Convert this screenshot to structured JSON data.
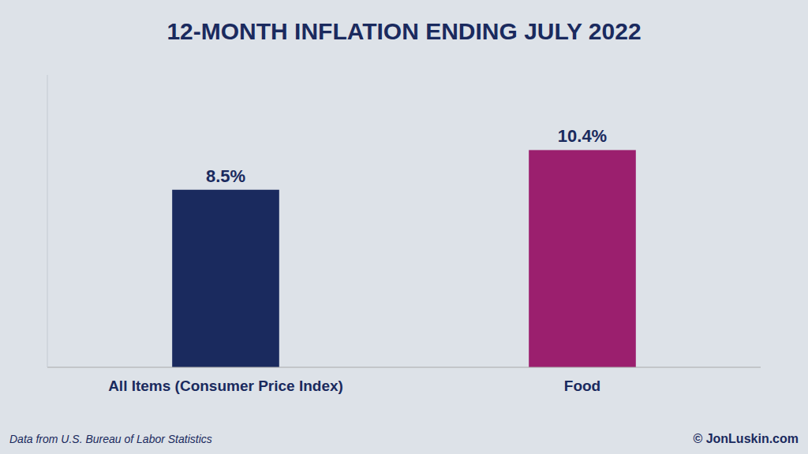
{
  "chart_data": {
    "type": "bar",
    "title": "12-MONTH INFLATION ENDING JULY 2022",
    "categories": [
      "All Items (Consumer Price Index)",
      "Food"
    ],
    "values": [
      8.5,
      10.4
    ],
    "value_labels": [
      "8.5%",
      "10.4%"
    ],
    "data_labels": true,
    "colors": [
      "#1a2a5e",
      "#9b1f6e"
    ],
    "ylim": [
      0,
      14
    ],
    "tick_labels": "x",
    "grid": false,
    "annotations": [
      "Data from U.S. Bureau of Labor Statistics",
      "© JonLuskin.com"
    ]
  }
}
